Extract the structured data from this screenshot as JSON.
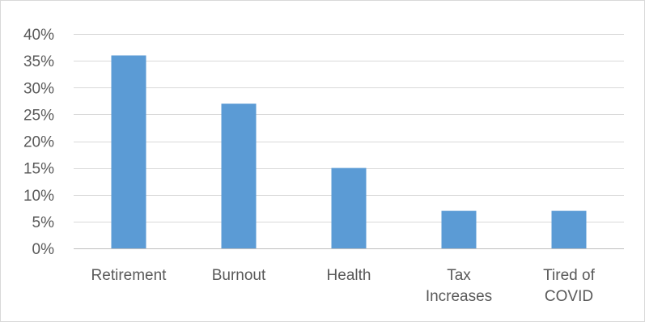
{
  "chart_data": {
    "type": "bar",
    "title": "",
    "xlabel": "",
    "ylabel": "",
    "categories": [
      [
        "Retirement"
      ],
      [
        "Burnout"
      ],
      [
        "Health"
      ],
      [
        "Tax",
        "Increases"
      ],
      [
        "Tired of",
        "COVID"
      ]
    ],
    "values": [
      0.36,
      0.27,
      0.15,
      0.07,
      0.07
    ],
    "ylim": [
      0,
      0.4
    ],
    "yticks": [
      0,
      0.05,
      0.1,
      0.15,
      0.2,
      0.25,
      0.3,
      0.35,
      0.4
    ],
    "ytick_labels": [
      "0%",
      "5%",
      "10%",
      "15%",
      "20%",
      "25%",
      "30%",
      "35%",
      "40%"
    ],
    "grid": true,
    "legend": "none",
    "colors": {
      "bar": "#5b9bd5",
      "grid": "#d9d9d9",
      "axis": "#bfbfbf",
      "text": "#595959"
    }
  }
}
